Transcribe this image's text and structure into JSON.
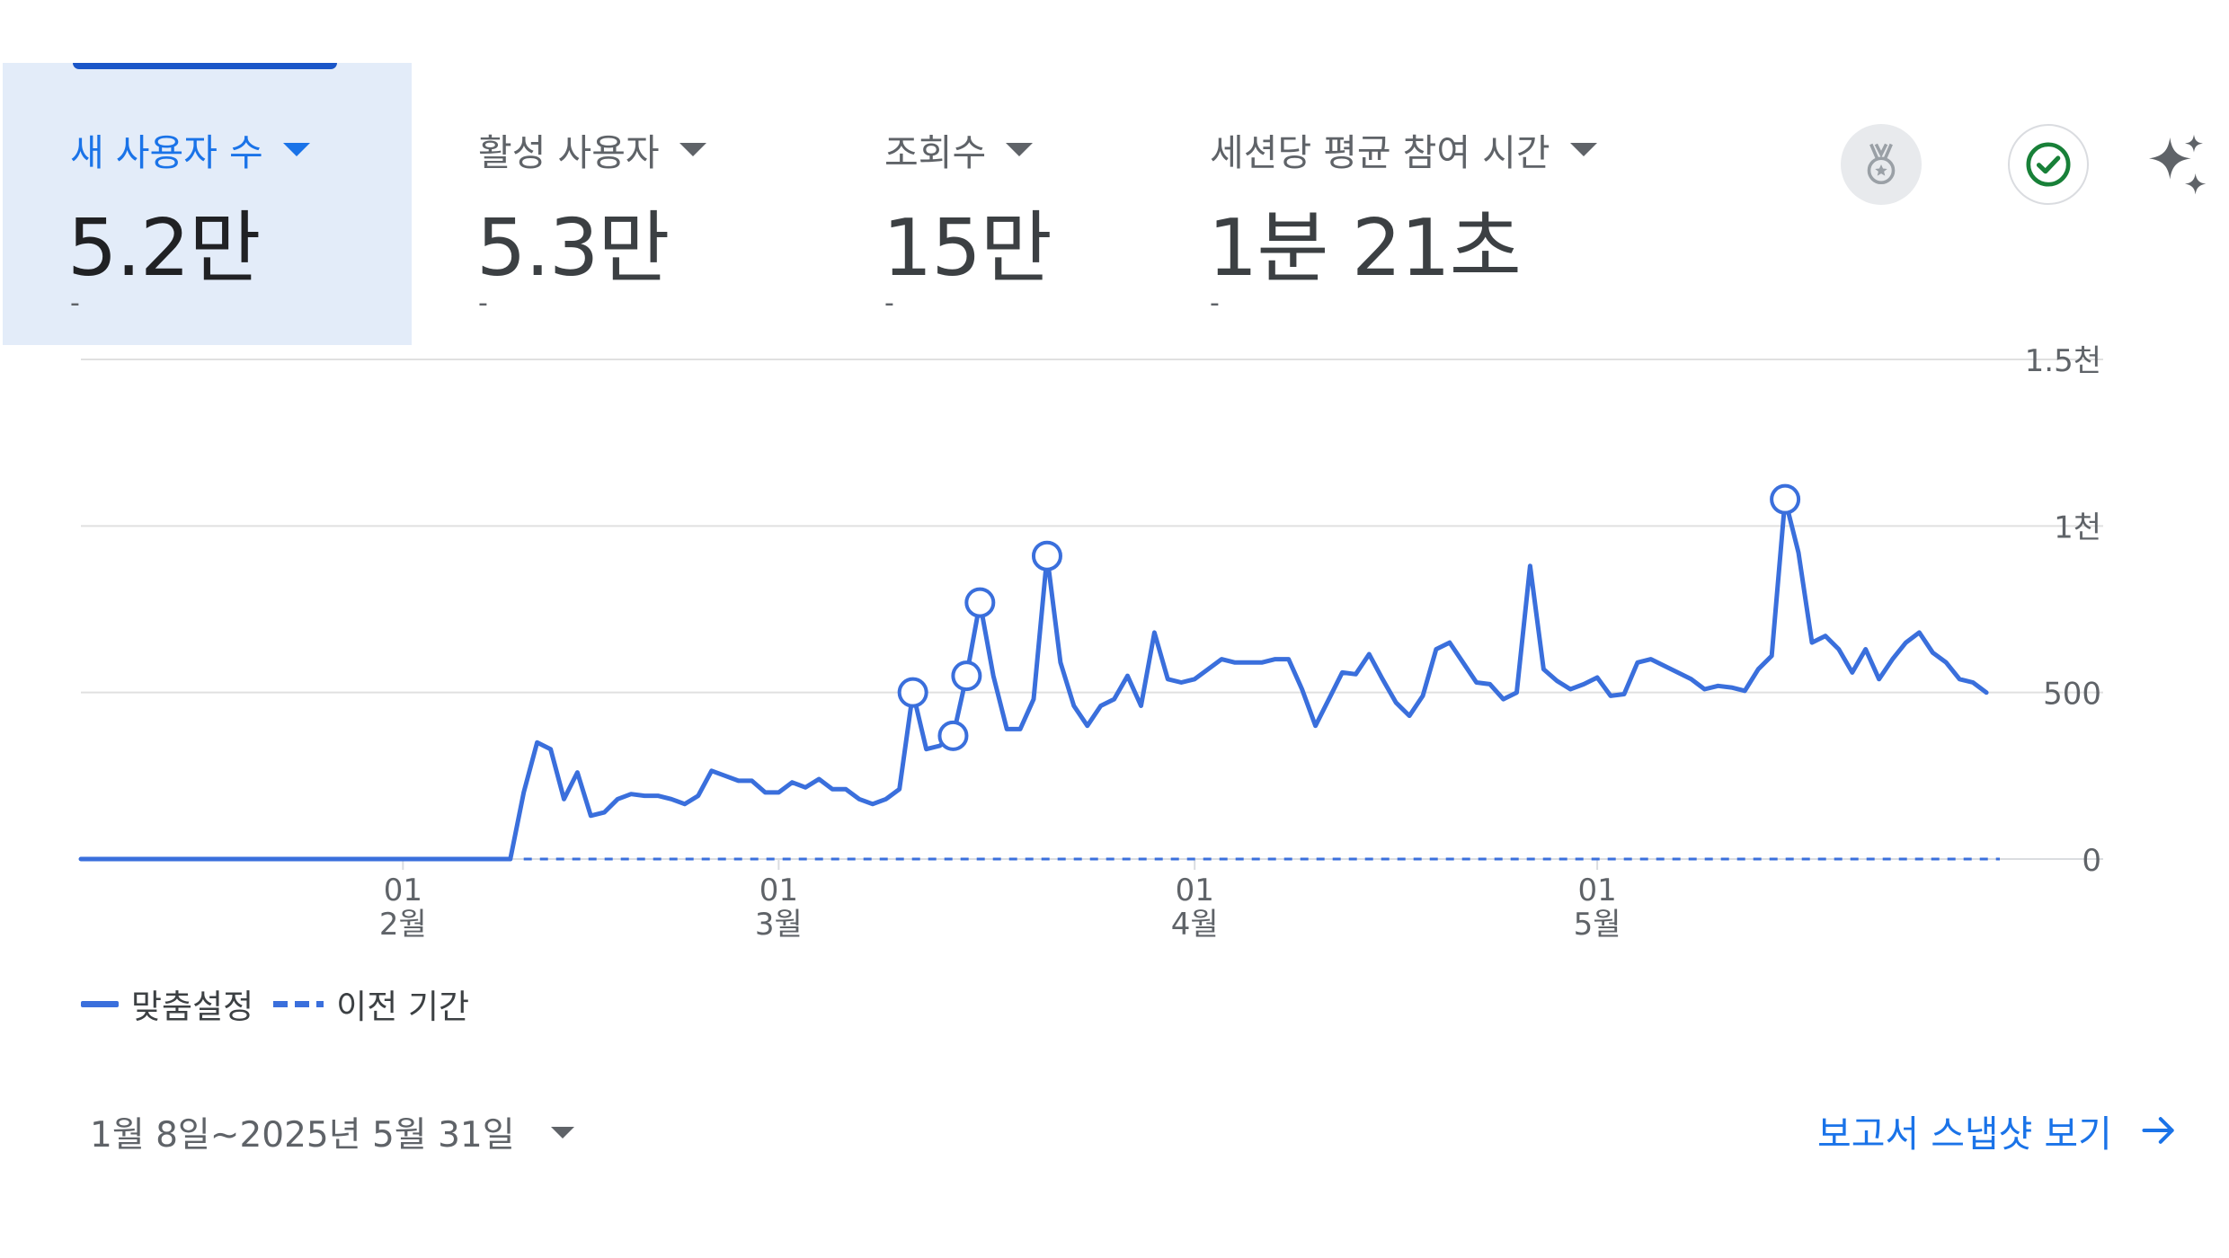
{
  "metrics": [
    {
      "label": "새 사용자 수",
      "value": "5.2만",
      "change": "-",
      "active": true
    },
    {
      "label": "활성 사용자",
      "value": "5.3만",
      "change": "-",
      "active": false
    },
    {
      "label": "조회수",
      "value": "15만",
      "change": "-",
      "active": false
    },
    {
      "label": "세션당 평균 참여 시간",
      "value": "1분 21초",
      "change": "-",
      "active": false
    }
  ],
  "icons": [
    "medal-icon",
    "check-circle-icon",
    "sparkle-icon"
  ],
  "legend": {
    "current": "맞춤설정",
    "previous": "이전 기간"
  },
  "footer": {
    "date_range": "1월 8일~2025년 5월 31일",
    "snapshot_link": "보고서 스냅샷 보기"
  },
  "colors": {
    "accent": "#1a73e8",
    "series": "#3a6fdc",
    "active_card": "#e3ecf9"
  },
  "chart_data": {
    "type": "line",
    "x_start": "2025-01-08",
    "x_end": "2025-05-31",
    "x_ticks": [
      {
        "day": "01",
        "month": "2월",
        "date": "2025-02-01"
      },
      {
        "day": "01",
        "month": "3월",
        "date": "2025-03-01"
      },
      {
        "day": "01",
        "month": "4월",
        "date": "2025-04-01"
      },
      {
        "day": "01",
        "month": "5월",
        "date": "2025-05-01"
      }
    ],
    "y_ticks": [
      "0",
      "500",
      "1천",
      "1.5천"
    ],
    "y_tick_values": [
      0,
      500,
      1000,
      1500
    ],
    "ylim": [
      0,
      1500
    ],
    "y_axis_position": "right",
    "grid": true,
    "legend_position": "bottom-left",
    "series": [
      {
        "name": "맞춤설정",
        "style": "solid",
        "values": [
          0,
          0,
          0,
          0,
          0,
          0,
          0,
          0,
          0,
          0,
          0,
          0,
          0,
          0,
          0,
          0,
          0,
          0,
          0,
          0,
          0,
          0,
          0,
          0,
          0,
          0,
          0,
          0,
          0,
          0,
          0,
          0,
          0,
          200,
          350,
          330,
          180,
          260,
          130,
          140,
          180,
          195,
          190,
          190,
          180,
          165,
          190,
          265,
          250,
          235,
          235,
          200,
          200,
          230,
          215,
          240,
          210,
          210,
          180,
          165,
          180,
          210,
          500,
          330,
          340,
          370,
          550,
          770,
          550,
          390,
          390,
          480,
          910,
          590,
          460,
          400,
          460,
          480,
          550,
          460,
          680,
          540,
          530,
          540,
          570,
          600,
          590,
          590,
          590,
          600,
          600,
          510,
          400,
          480,
          560,
          555,
          615,
          540,
          470,
          430,
          490,
          630,
          650,
          590,
          530,
          525,
          480,
          500,
          880,
          570,
          535,
          510,
          525,
          545,
          490,
          495,
          590,
          600,
          580,
          560,
          540,
          510,
          520,
          515,
          505,
          570,
          610,
          1080,
          920,
          650,
          670,
          630,
          560,
          630,
          540,
          600,
          650,
          680,
          620,
          590,
          540,
          530,
          500
        ]
      },
      {
        "name": "이전 기간",
        "style": "dashed",
        "values": [
          0,
          0,
          0,
          0,
          0,
          0,
          0,
          0,
          0,
          0,
          0,
          0,
          0,
          0,
          0,
          0,
          0,
          0,
          0,
          0,
          0,
          0,
          0,
          0,
          0,
          0,
          0,
          0,
          0,
          0,
          0,
          0,
          0,
          0,
          0,
          0,
          0,
          0,
          0,
          0,
          0,
          0,
          0,
          0,
          0,
          0,
          0,
          0,
          0,
          0,
          0,
          0,
          0,
          0,
          0,
          0,
          0,
          0,
          0,
          0,
          0,
          0,
          0,
          0,
          0,
          0,
          0,
          0,
          0,
          0,
          0,
          0,
          0,
          0,
          0,
          0,
          0,
          0,
          0,
          0,
          0,
          0,
          0,
          0,
          0,
          0,
          0,
          0,
          0,
          0,
          0,
          0,
          0,
          0,
          0,
          0,
          0,
          0,
          0,
          0,
          0,
          0,
          0,
          0,
          0,
          0,
          0,
          0,
          0,
          0,
          0,
          0,
          0,
          0,
          0,
          0,
          0,
          0,
          0,
          0,
          0,
          0,
          0,
          0,
          0,
          0,
          0,
          0,
          0,
          0,
          0,
          0,
          0,
          0,
          0,
          0,
          0,
          0,
          0,
          0,
          0,
          0,
          0,
          0
        ]
      }
    ],
    "anomalies": [
      {
        "index": 62,
        "value": 500
      },
      {
        "index": 65,
        "value": 370
      },
      {
        "index": 66,
        "value": 550
      },
      {
        "index": 67,
        "value": 770
      },
      {
        "index": 72,
        "value": 910
      },
      {
        "index": 127,
        "value": 1080
      }
    ]
  }
}
